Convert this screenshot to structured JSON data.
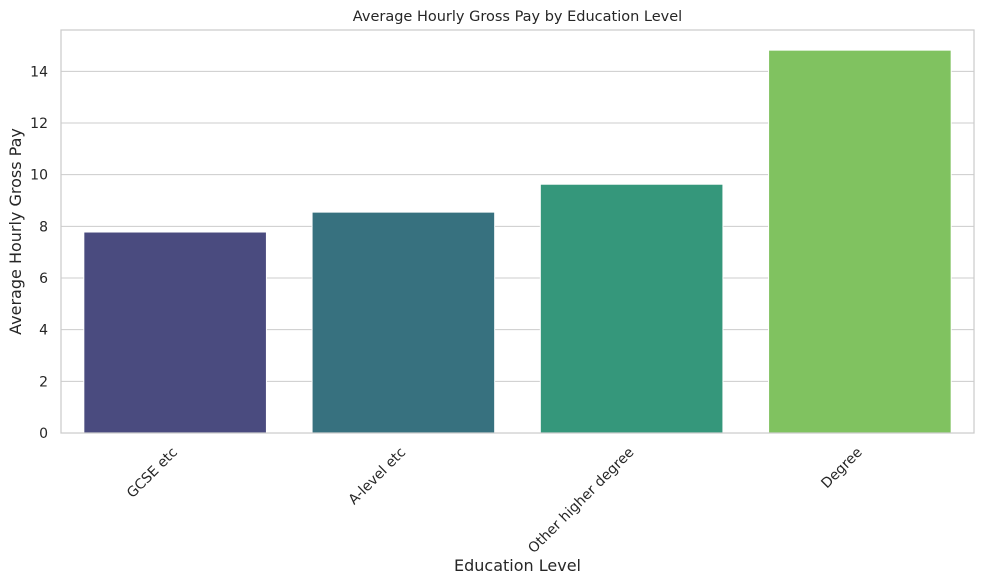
{
  "chart_data": {
    "type": "bar",
    "title": "Average Hourly Gross Pay by Education Level",
    "xlabel": "Education Level",
    "ylabel": "Average Hourly Gross Pay",
    "categories": [
      "GCSE etc",
      "A-level etc",
      "Other higher degree",
      "Degree"
    ],
    "values": [
      7.78,
      8.55,
      9.63,
      14.82
    ],
    "colors": [
      "#4a4b7f",
      "#37717f",
      "#35977b",
      "#80c260"
    ],
    "ylim": [
      0,
      15.6
    ],
    "yticks": [
      0,
      2,
      4,
      6,
      8,
      10,
      12,
      14
    ],
    "grid": "horizontal",
    "legend": "none",
    "xtick_rotation": -45
  }
}
